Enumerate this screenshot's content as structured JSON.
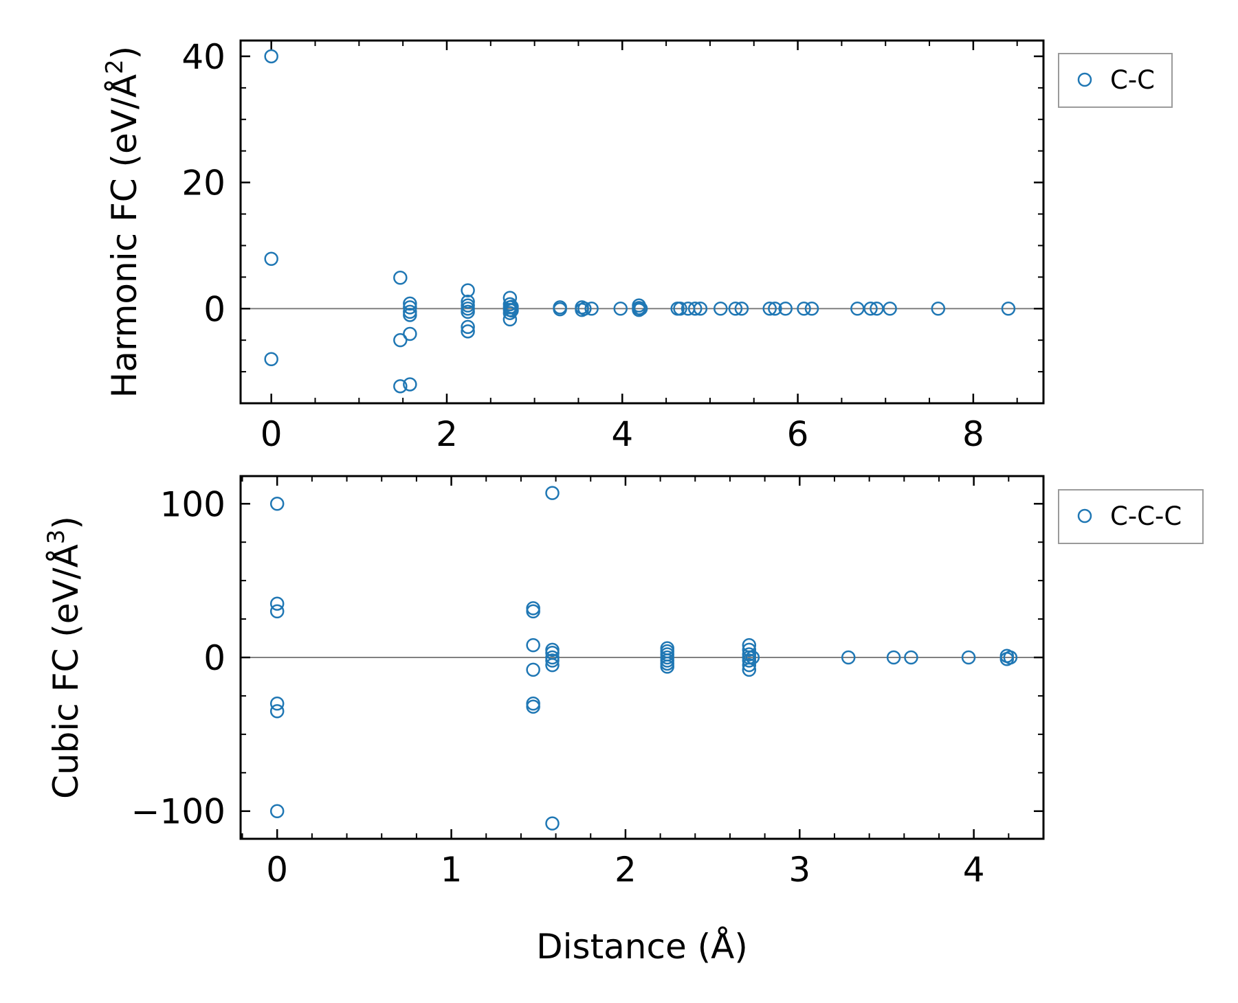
{
  "chart_data": [
    {
      "type": "scatter",
      "xlabel": "",
      "ylabel": "Harmonic FC (eV/Å$^2$)",
      "ylabel_main": "Harmonic FC (eV/Å",
      "ylabel_sup": "2",
      "ylabel_close": ")",
      "xlim": [
        -0.35,
        8.8
      ],
      "ylim": [
        -15,
        42.5
      ],
      "xticks": [
        0,
        2,
        4,
        6,
        8
      ],
      "xtick_labels": [
        "0",
        "2",
        "4",
        "6",
        "8"
      ],
      "yticks": [
        0,
        20,
        40
      ],
      "ytick_labels": [
        "0",
        "20",
        "40"
      ],
      "grid": false,
      "zero_line": true,
      "legend_position": "outside-right-top",
      "series": [
        {
          "name": "C-C",
          "color": "#1f77b4",
          "marker": "open-circle",
          "points": [
            [
              0,
              40
            ],
            [
              0,
              7.9
            ],
            [
              0,
              -8
            ],
            [
              1.47,
              4.9
            ],
            [
              1.47,
              -5
            ],
            [
              1.47,
              -12.3
            ],
            [
              1.58,
              0.8
            ],
            [
              1.58,
              0.2
            ],
            [
              1.58,
              -0.5
            ],
            [
              1.58,
              -1
            ],
            [
              1.58,
              -4
            ],
            [
              1.58,
              -12
            ],
            [
              2.24,
              2.9
            ],
            [
              2.24,
              1.1
            ],
            [
              2.24,
              0.5
            ],
            [
              2.24,
              0
            ],
            [
              2.24,
              -0.5
            ],
            [
              2.24,
              -2.9
            ],
            [
              2.24,
              -3.6
            ],
            [
              2.72,
              1.7
            ],
            [
              2.72,
              0.7
            ],
            [
              2.72,
              0.2
            ],
            [
              2.72,
              -0.2
            ],
            [
              2.72,
              -0.7
            ],
            [
              2.72,
              -1.7
            ],
            [
              2.74,
              0.3
            ],
            [
              2.74,
              -0.3
            ],
            [
              3.29,
              0.2
            ],
            [
              3.29,
              -0.1
            ],
            [
              3.54,
              0.2
            ],
            [
              3.54,
              -0.2
            ],
            [
              3.57,
              0
            ],
            [
              3.65,
              0
            ],
            [
              3.98,
              0
            ],
            [
              4.19,
              0.5
            ],
            [
              4.19,
              0.1
            ],
            [
              4.19,
              -0.2
            ],
            [
              4.21,
              0
            ],
            [
              4.63,
              0
            ],
            [
              4.66,
              0
            ],
            [
              4.75,
              0
            ],
            [
              4.83,
              0
            ],
            [
              4.89,
              0
            ],
            [
              5.12,
              0
            ],
            [
              5.29,
              0
            ],
            [
              5.36,
              0
            ],
            [
              5.68,
              0
            ],
            [
              5.74,
              0
            ],
            [
              5.86,
              0
            ],
            [
              6.07,
              0
            ],
            [
              6.16,
              0
            ],
            [
              6.68,
              0
            ],
            [
              6.83,
              0
            ],
            [
              6.9,
              0
            ],
            [
              7.05,
              0
            ],
            [
              7.6,
              0
            ],
            [
              8.4,
              0
            ]
          ]
        }
      ]
    },
    {
      "type": "scatter",
      "xlabel": "Distance (Å)",
      "ylabel": "Cubic FC (eV/Å$^3$)",
      "ylabel_main": "Cubic FC (eV/Å",
      "ylabel_sup": "3",
      "ylabel_close": ")",
      "xlim": [
        -0.21,
        4.4
      ],
      "ylim": [
        -118,
        118
      ],
      "xticks": [
        0,
        1,
        2,
        3,
        4
      ],
      "xtick_labels": [
        "0",
        "1",
        "2",
        "3",
        "4"
      ],
      "yticks": [
        -100,
        0,
        100
      ],
      "ytick_labels": [
        "−100",
        "0",
        "100"
      ],
      "grid": false,
      "zero_line": true,
      "legend_position": "outside-right-top",
      "series": [
        {
          "name": "C-C-C",
          "color": "#1f77b4",
          "marker": "open-circle",
          "points": [
            [
              0,
              100
            ],
            [
              0,
              35
            ],
            [
              0,
              30
            ],
            [
              0,
              -30
            ],
            [
              0,
              -35
            ],
            [
              0,
              -100
            ],
            [
              1.47,
              32
            ],
            [
              1.47,
              30
            ],
            [
              1.47,
              8
            ],
            [
              1.47,
              -8
            ],
            [
              1.47,
              -30
            ],
            [
              1.47,
              -32
            ],
            [
              1.58,
              107
            ],
            [
              1.58,
              5
            ],
            [
              1.58,
              3
            ],
            [
              1.58,
              0
            ],
            [
              1.58,
              -2
            ],
            [
              1.58,
              -5
            ],
            [
              1.58,
              -108
            ],
            [
              2.24,
              6
            ],
            [
              2.24,
              4
            ],
            [
              2.24,
              2
            ],
            [
              2.24,
              0
            ],
            [
              2.24,
              -2
            ],
            [
              2.24,
              -4
            ],
            [
              2.24,
              -6
            ],
            [
              2.71,
              8
            ],
            [
              2.71,
              5
            ],
            [
              2.71,
              2
            ],
            [
              2.71,
              0
            ],
            [
              2.71,
              -2
            ],
            [
              2.71,
              -5
            ],
            [
              2.71,
              -8
            ],
            [
              2.73,
              0
            ],
            [
              3.28,
              0
            ],
            [
              3.54,
              0
            ],
            [
              3.64,
              0
            ],
            [
              3.97,
              0
            ],
            [
              4.19,
              1
            ],
            [
              4.19,
              -1
            ],
            [
              4.21,
              0
            ]
          ]
        }
      ]
    }
  ]
}
